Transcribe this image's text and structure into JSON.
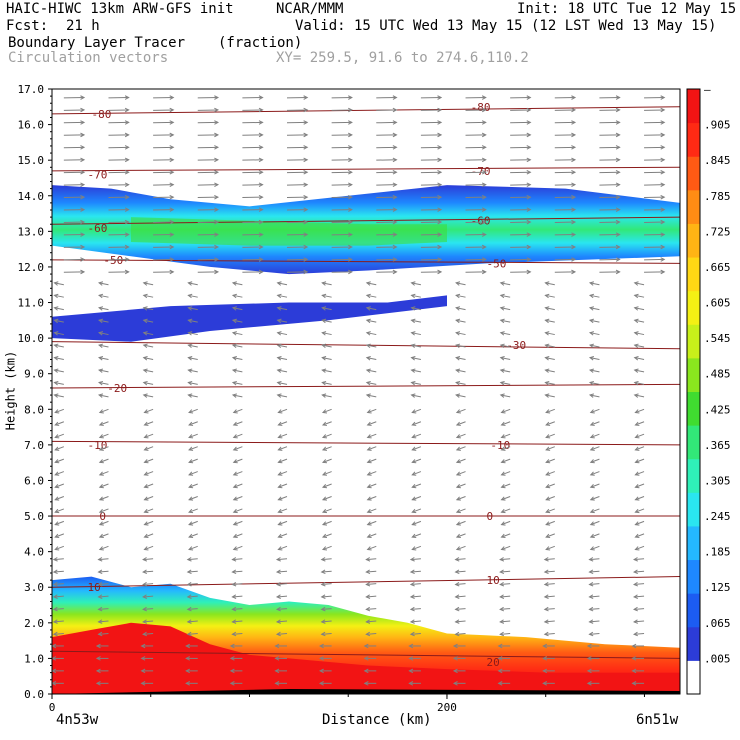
{
  "header": {
    "model": "HAIC-HIWC 13km ARW-GFS init",
    "org": "NCAR/MMM",
    "init": "Init: 18 UTC Tue 12 May 15",
    "fcst_label": "Fcst:",
    "fcst_value": "21 h",
    "valid": "Valid: 15 UTC Wed 13 May 15 (12 LST Wed 13 May 15)",
    "field": "Boundary Layer Tracer",
    "field_units": "(fraction)",
    "overlay": "Circulation vectors",
    "xy": "XY= 259.5, 91.6 to 274.6,110.2"
  },
  "colors": {
    "contour": "#8b1a1a",
    "vector": "#808080",
    "scale": [
      "#ffffff",
      "#2c3cd8",
      "#1c5cf2",
      "#1e88ff",
      "#24b8ff",
      "#2ae6f0",
      "#2ff0b8",
      "#32e878",
      "#40dc30",
      "#8ae61e",
      "#c8f01a",
      "#f4f014",
      "#ffd814",
      "#ffb414",
      "#ff8c14",
      "#ff5a14",
      "#ff2a14",
      "#f21414"
    ]
  },
  "chart_data": {
    "type": "cross-section",
    "title": "Boundary Layer Tracer (fraction)",
    "xlabel": "Distance (km)",
    "ylabel": "Height (km)",
    "xlim": [
      0,
      318
    ],
    "ylim": [
      0.0,
      17.0
    ],
    "x_ticks": [
      {
        "value": 0,
        "label": "0"
      },
      {
        "value": 200,
        "label": "200"
      }
    ],
    "x_end_labels": {
      "left": "4n53w",
      "right": "6n51w"
    },
    "y_ticks": [
      "0.0",
      "1.0",
      "2.0",
      "3.0",
      "4.0",
      "5.0",
      "6.0",
      "7.0",
      "8.0",
      "9.0",
      "10.0",
      "11.0",
      "12.0",
      "13.0",
      "14.0",
      "15.0",
      "16.0",
      "17.0"
    ],
    "colorbar_labels": [
      ".005",
      ".065",
      ".125",
      ".185",
      ".245",
      ".305",
      ".365",
      ".425",
      ".485",
      ".545",
      ".605",
      ".665",
      ".725",
      ".785",
      ".845",
      ".905",
      "–"
    ],
    "temperature_contours": [
      {
        "label": "-80",
        "height_left": 16.3,
        "height_right": 16.5,
        "label_positions": [
          [
            20,
            16.3
          ],
          [
            212,
            16.5
          ]
        ]
      },
      {
        "label": "-70",
        "height_left": 14.7,
        "height_right": 14.8,
        "label_positions": [
          [
            18,
            14.6
          ],
          [
            212,
            14.7
          ]
        ]
      },
      {
        "label": "-60",
        "height_left": 13.2,
        "height_right": 13.4,
        "label_positions": [
          [
            18,
            13.1
          ],
          [
            212,
            13.3
          ]
        ]
      },
      {
        "label": "-50",
        "height_left": 12.2,
        "height_right": 12.1,
        "label_positions": [
          [
            26,
            12.2
          ],
          [
            220,
            12.1
          ]
        ]
      },
      {
        "label": "-30",
        "height_left": 9.9,
        "height_right": 9.7,
        "label_positions": [
          [
            230,
            9.8
          ]
        ]
      },
      {
        "label": "-20",
        "height_left": 8.6,
        "height_right": 8.7,
        "label_positions": [
          [
            28,
            8.6
          ]
        ]
      },
      {
        "label": "-10",
        "height_left": 7.1,
        "height_right": 7.0,
        "label_positions": [
          [
            18,
            7.0
          ],
          [
            222,
            7.0
          ]
        ]
      },
      {
        "label": "0",
        "height_left": 5.0,
        "height_right": 5.0,
        "label_positions": [
          [
            24,
            5.0
          ],
          [
            220,
            5.0
          ]
        ]
      },
      {
        "label": "10",
        "height_left": 3.0,
        "height_right": 3.3,
        "label_positions": [
          [
            18,
            3.0
          ],
          [
            220,
            3.2
          ]
        ]
      },
      {
        "label": "20",
        "height_left": 1.2,
        "height_right": 1.0,
        "label_positions": [
          [
            220,
            0.9
          ]
        ]
      }
    ],
    "upper_layer": {
      "top": [
        [
          0,
          14.3
        ],
        [
          30,
          14.2
        ],
        [
          60,
          13.9
        ],
        [
          100,
          13.7
        ],
        [
          150,
          14.0
        ],
        [
          200,
          14.3
        ],
        [
          260,
          14.2
        ],
        [
          318,
          13.8
        ]
      ],
      "bottom": [
        [
          0,
          12.6
        ],
        [
          40,
          12.3
        ],
        [
          80,
          12.0
        ],
        [
          120,
          11.8
        ],
        [
          160,
          11.9
        ],
        [
          220,
          12.1
        ],
        [
          270,
          12.2
        ],
        [
          318,
          12.3
        ]
      ],
      "core_top": [
        [
          40,
          13.4
        ],
        [
          100,
          13.3
        ],
        [
          160,
          13.2
        ],
        [
          200,
          13.2
        ]
      ],
      "core_bottom": [
        [
          40,
          12.7
        ],
        [
          100,
          12.6
        ],
        [
          160,
          12.6
        ],
        [
          200,
          12.7
        ]
      ]
    },
    "mid_layer": {
      "top": [
        [
          0,
          10.6
        ],
        [
          60,
          10.9
        ],
        [
          120,
          11.0
        ],
        [
          170,
          11.0
        ],
        [
          200,
          11.2
        ]
      ],
      "bottom": [
        [
          0,
          10.0
        ],
        [
          40,
          9.9
        ],
        [
          80,
          10.2
        ],
        [
          140,
          10.5
        ],
        [
          200,
          10.9
        ]
      ]
    },
    "boundary_layer_top": [
      [
        0,
        3.2
      ],
      [
        20,
        3.3
      ],
      [
        40,
        3.0
      ],
      [
        60,
        3.1
      ],
      [
        80,
        2.7
      ],
      [
        100,
        2.5
      ],
      [
        120,
        2.6
      ],
      [
        140,
        2.5
      ],
      [
        160,
        2.2
      ],
      [
        180,
        2.0
      ],
      [
        200,
        1.7
      ],
      [
        240,
        1.6
      ],
      [
        280,
        1.4
      ],
      [
        318,
        1.3
      ]
    ],
    "boundary_layer_red_top": [
      [
        0,
        1.6
      ],
      [
        20,
        1.8
      ],
      [
        40,
        2.0
      ],
      [
        60,
        1.9
      ],
      [
        80,
        1.4
      ],
      [
        100,
        1.1
      ],
      [
        120,
        1.0
      ],
      [
        160,
        0.8
      ],
      [
        200,
        0.7
      ],
      [
        250,
        0.6
      ],
      [
        318,
        0.6
      ]
    ]
  }
}
